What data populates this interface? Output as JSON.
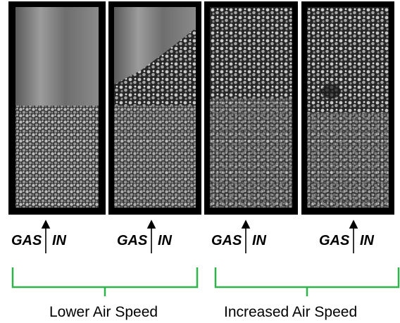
{
  "panels": [
    {
      "gas_label": "GAS",
      "in_label": "IN"
    },
    {
      "gas_label": "GAS",
      "in_label": "IN"
    },
    {
      "gas_label": "GAS",
      "in_label": "IN"
    },
    {
      "gas_label": "GAS",
      "in_label": "IN"
    }
  ],
  "groups": [
    {
      "label": "Lower Air Speed"
    },
    {
      "label": "Increased Air Speed"
    }
  ]
}
